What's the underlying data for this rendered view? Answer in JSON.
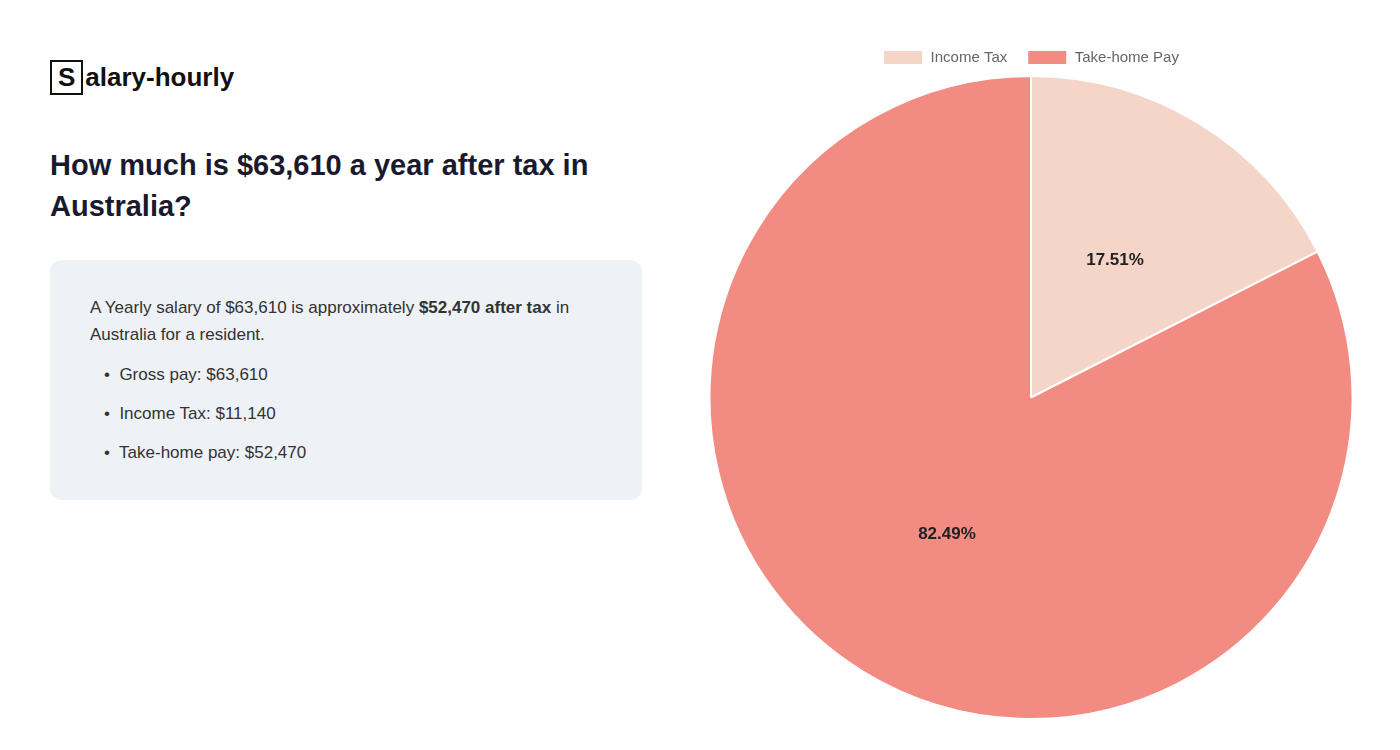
{
  "chart_data": {
    "type": "pie",
    "title": "How much is $63,610 a year after tax in\nAustralia?",
    "categories": [
      "Income Tax",
      "Take-home Pay"
    ],
    "values": [
      17.51,
      82.49
    ],
    "value_labels": [
      "17.51%",
      "82.49%"
    ],
    "colors": [
      "#f5d5c8",
      "#f28b82"
    ],
    "data_labels": true,
    "legend": "top",
    "annotations": [
      [
        "S",
        "alary-hourly"
      ],
      [
        "A Yearly salary of $63,610 is approximately ",
        "$52,470 after tax",
        " in"
      ],
      [
        "Australia for a resident."
      ],
      [
        "•  Gross pay: $63,610"
      ],
      [
        "•  Income Tax: $11,140"
      ],
      [
        "•  Take-home pay: $52,470"
      ]
    ]
  }
}
